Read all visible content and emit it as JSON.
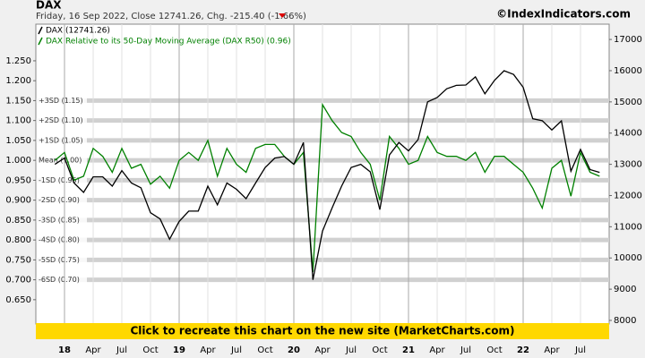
{
  "chart_data": {
    "type": "line",
    "title": "DAX",
    "subtitle": "Friday, 16 Sep 2022, Close 12741.26, Chg. -215.40 (-1.66%)",
    "watermark": "©IndexIndicators.com",
    "banner": "Click to recreate this chart on the new site (MarketCharts.com)",
    "legend": "upper left",
    "grid": true,
    "x": [
      "2017-12",
      "2018-01",
      "2018-02",
      "2018-03",
      "2018-04",
      "2018-05",
      "2018-06",
      "2018-07",
      "2018-08",
      "2018-09",
      "2018-10",
      "2018-11",
      "2018-12",
      "2019-01",
      "2019-02",
      "2019-03",
      "2019-04",
      "2019-05",
      "2019-06",
      "2019-07",
      "2019-08",
      "2019-09",
      "2019-10",
      "2019-11",
      "2019-12",
      "2020-01",
      "2020-02",
      "2020-03",
      "2020-04",
      "2020-05",
      "2020-06",
      "2020-07",
      "2020-08",
      "2020-09",
      "2020-10",
      "2020-11",
      "2020-12",
      "2021-01",
      "2021-02",
      "2021-03",
      "2021-04",
      "2021-05",
      "2021-06",
      "2021-07",
      "2021-08",
      "2021-09",
      "2021-10",
      "2021-11",
      "2021-12",
      "2022-01",
      "2022-02",
      "2022-03",
      "2022-04",
      "2022-05",
      "2022-06",
      "2022-07",
      "2022-08",
      "2022-09"
    ],
    "xlim": [
      "2017-10",
      "2022-10"
    ],
    "xticks": [
      {
        "value": "2018-01",
        "label": "18"
      },
      {
        "value": "2018-04",
        "label": "Apr"
      },
      {
        "value": "2018-07",
        "label": "Jul"
      },
      {
        "value": "2018-10",
        "label": "Oct"
      },
      {
        "value": "2019-01",
        "label": "19"
      },
      {
        "value": "2019-04",
        "label": "Apr"
      },
      {
        "value": "2019-07",
        "label": "Jul"
      },
      {
        "value": "2019-10",
        "label": "Oct"
      },
      {
        "value": "2020-01",
        "label": "20"
      },
      {
        "value": "2020-04",
        "label": "Apr"
      },
      {
        "value": "2020-07",
        "label": "Jul"
      },
      {
        "value": "2020-10",
        "label": "Oct"
      },
      {
        "value": "2021-01",
        "label": "21"
      },
      {
        "value": "2021-04",
        "label": "Apr"
      },
      {
        "value": "2021-07",
        "label": "Jul"
      },
      {
        "value": "2021-10",
        "label": "Oct"
      },
      {
        "value": "2022-01",
        "label": "22"
      },
      {
        "value": "2022-04",
        "label": "Apr"
      },
      {
        "value": "2022-07",
        "label": "Jul"
      }
    ],
    "ylim": [
      0.589,
      1.342
    ],
    "yticks": [
      {
        "value": 0.65,
        "label": "0.650"
      },
      {
        "value": 0.7,
        "label": "0.700"
      },
      {
        "value": 0.75,
        "label": "0.750"
      },
      {
        "value": 0.8,
        "label": "0.800"
      },
      {
        "value": 0.85,
        "label": "0.850"
      },
      {
        "value": 0.9,
        "label": "0.900"
      },
      {
        "value": 0.95,
        "label": "0.950"
      },
      {
        "value": 1.0,
        "label": "1.000"
      },
      {
        "value": 1.05,
        "label": "1.050"
      },
      {
        "value": 1.1,
        "label": "1.100"
      },
      {
        "value": 1.15,
        "label": "1.150"
      },
      {
        "value": 1.2,
        "label": "1.200"
      },
      {
        "value": 1.25,
        "label": "1.250"
      }
    ],
    "y2lim": [
      7885,
      17490
    ],
    "y2ticks": [
      8000,
      9000,
      10000,
      11000,
      12000,
      13000,
      14000,
      15000,
      16000,
      17000
    ],
    "bands": [
      {
        "value": 1.15,
        "label": "+3SD (1.15)"
      },
      {
        "value": 1.1,
        "label": "+2SD (1.10)"
      },
      {
        "value": 1.05,
        "label": "+1SD (1.05)"
      },
      {
        "value": 1.0,
        "label": "Mean (1.00)"
      },
      {
        "value": 0.95,
        "label": "-1SD (0.95)"
      },
      {
        "value": 0.9,
        "label": "-2SD (0.90)"
      },
      {
        "value": 0.85,
        "label": "-3SD (0.85)"
      },
      {
        "value": 0.8,
        "label": "-4SD (0.80)"
      },
      {
        "value": 0.75,
        "label": "-5SD (0.75)"
      },
      {
        "value": 0.7,
        "label": "-6SD (0.70)"
      }
    ],
    "series": [
      {
        "name": "DAX (12741.26)",
        "color": "#000000",
        "axis": "y2",
        "values": [
          13000,
          13200,
          12400,
          12100,
          12600,
          12600,
          12300,
          12800,
          12400,
          12250,
          11450,
          11250,
          10600,
          11170,
          11500,
          11500,
          12300,
          11700,
          12400,
          12200,
          11900,
          12400,
          12900,
          13200,
          13250,
          13000,
          13700,
          9300,
          10860,
          11600,
          12300,
          12900,
          13000,
          12760,
          11550,
          13300,
          13700,
          13430,
          13790,
          15000,
          15140,
          15420,
          15530,
          15540,
          15800,
          15260,
          15690,
          16000,
          15880,
          15470,
          14460,
          14400,
          14100,
          14390,
          12780,
          13480,
          12830,
          12741
        ]
      },
      {
        "name": "DAX Relative to its 50-Day Moving Average (DAX R50) (0.96)",
        "color": "#008000",
        "axis": "y",
        "values": [
          1.0,
          1.02,
          0.95,
          0.96,
          1.03,
          1.01,
          0.97,
          1.03,
          0.98,
          0.99,
          0.94,
          0.96,
          0.93,
          1.0,
          1.02,
          1.0,
          1.05,
          0.96,
          1.03,
          0.99,
          0.97,
          1.03,
          1.04,
          1.04,
          1.01,
          0.99,
          1.02,
          0.72,
          1.14,
          1.1,
          1.07,
          1.06,
          1.02,
          0.99,
          0.9,
          1.06,
          1.03,
          0.99,
          1.0,
          1.06,
          1.02,
          1.01,
          1.01,
          1.0,
          1.02,
          0.97,
          1.01,
          1.01,
          0.99,
          0.97,
          0.93,
          0.88,
          0.98,
          1.0,
          0.91,
          1.02,
          0.97,
          0.96
        ]
      }
    ]
  }
}
